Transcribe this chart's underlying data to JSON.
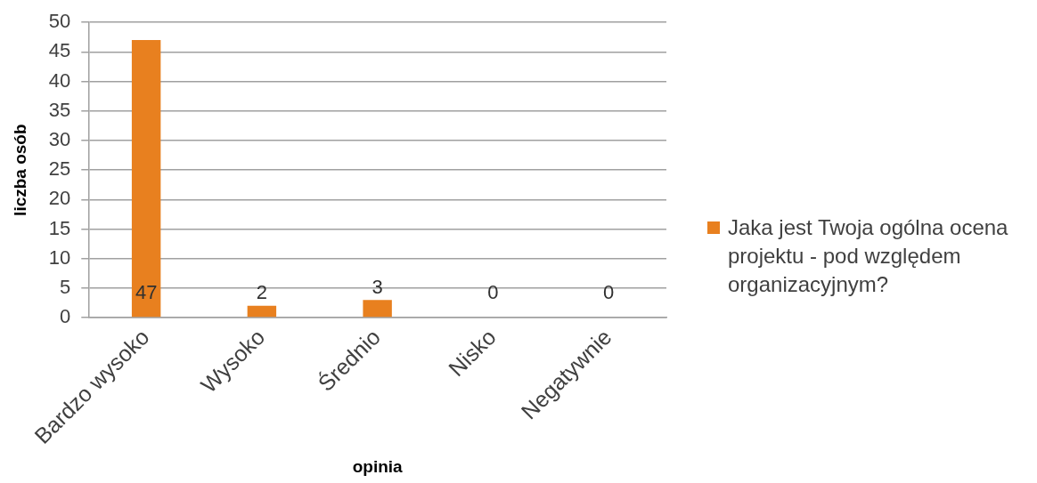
{
  "chart_data": {
    "type": "bar",
    "xlabel": "opinia",
    "ylabel": "liczba osób",
    "categories": [
      "Bardzo wysoko",
      "Wysoko",
      "Średnio",
      "Nisko",
      "Negatywnie"
    ],
    "series": [
      {
        "name": "Jaka jest Twoja ogólna ocena projektu - pod względem organizacyjnym?",
        "color": "#e8801f",
        "values": [
          47,
          2,
          3,
          0,
          0
        ]
      }
    ],
    "ylim": [
      0,
      50
    ],
    "yticks": [
      0,
      5,
      10,
      15,
      20,
      25,
      30,
      35,
      40,
      45,
      50
    ],
    "grid": "y",
    "legend": "right",
    "data_labels": true
  }
}
